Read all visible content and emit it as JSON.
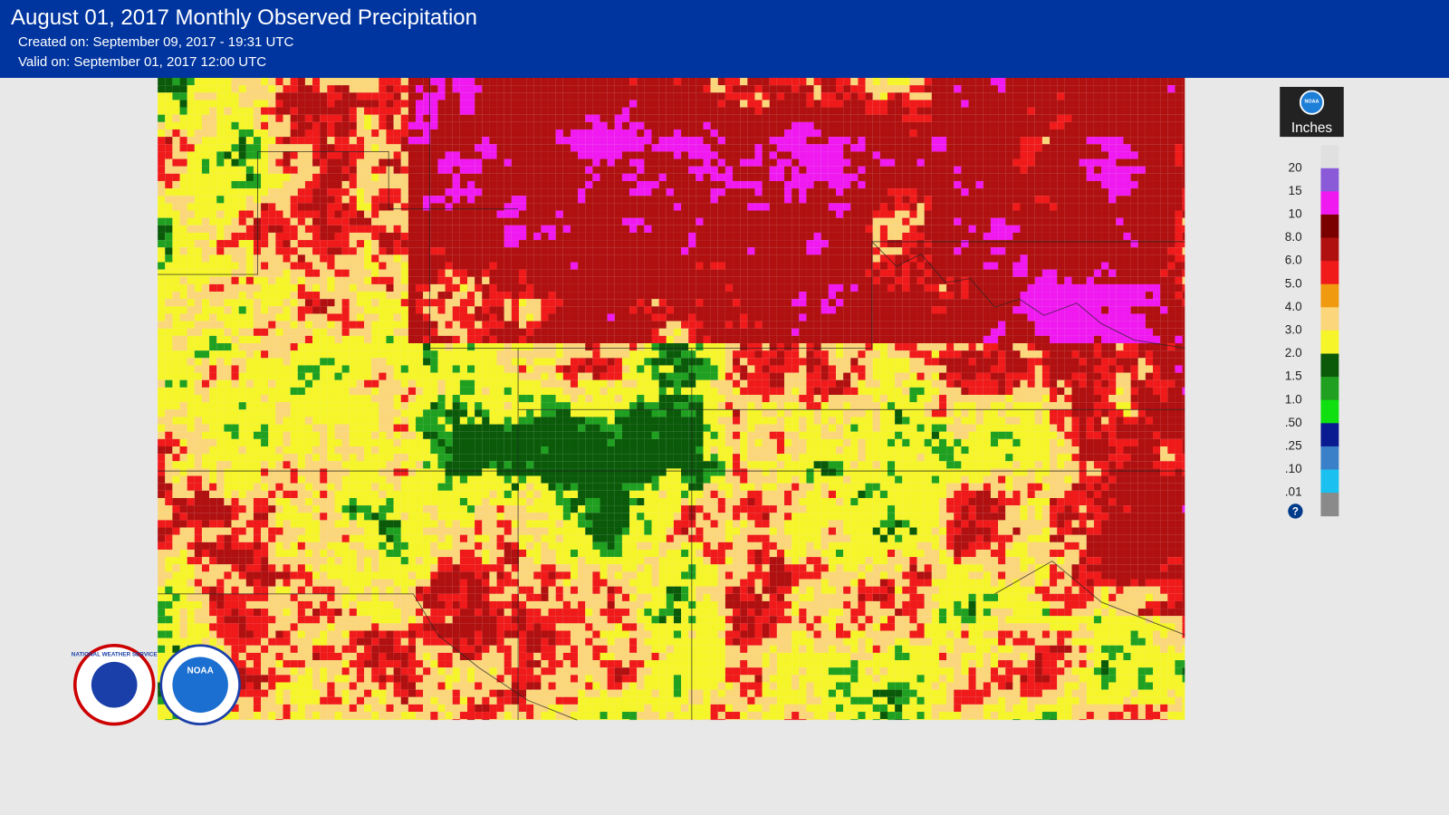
{
  "header": {
    "title": "August 01, 2017 Monthly Observed Precipitation",
    "created": "Created on: September 09, 2017 - 19:31 UTC",
    "valid": "Valid on: September 01, 2017 12:00 UTC"
  },
  "legend": {
    "badge": "NOAA",
    "title": "Inches",
    "labels": [
      "20",
      "15",
      "10",
      "8.0",
      "6.0",
      "5.0",
      "4.0",
      "3.0",
      "2.0",
      "1.5",
      "1.0",
      ".50",
      ".25",
      ".10",
      ".01"
    ],
    "colors": [
      "#e0e0e0",
      "#8a5ad8",
      "#f019f0",
      "#7a0000",
      "#b01010",
      "#f01a1a",
      "#f09a10",
      "#fbd67a",
      "#f5f52a",
      "#0a5a0a",
      "#20a020",
      "#10e010",
      "#0a1a90",
      "#3a80c8",
      "#1ac0f0",
      "#8a8a8a"
    ],
    "help": "?"
  },
  "logos": {
    "nws": "NATIONAL WEATHER SERVICE",
    "noaa": "NOAA"
  }
}
